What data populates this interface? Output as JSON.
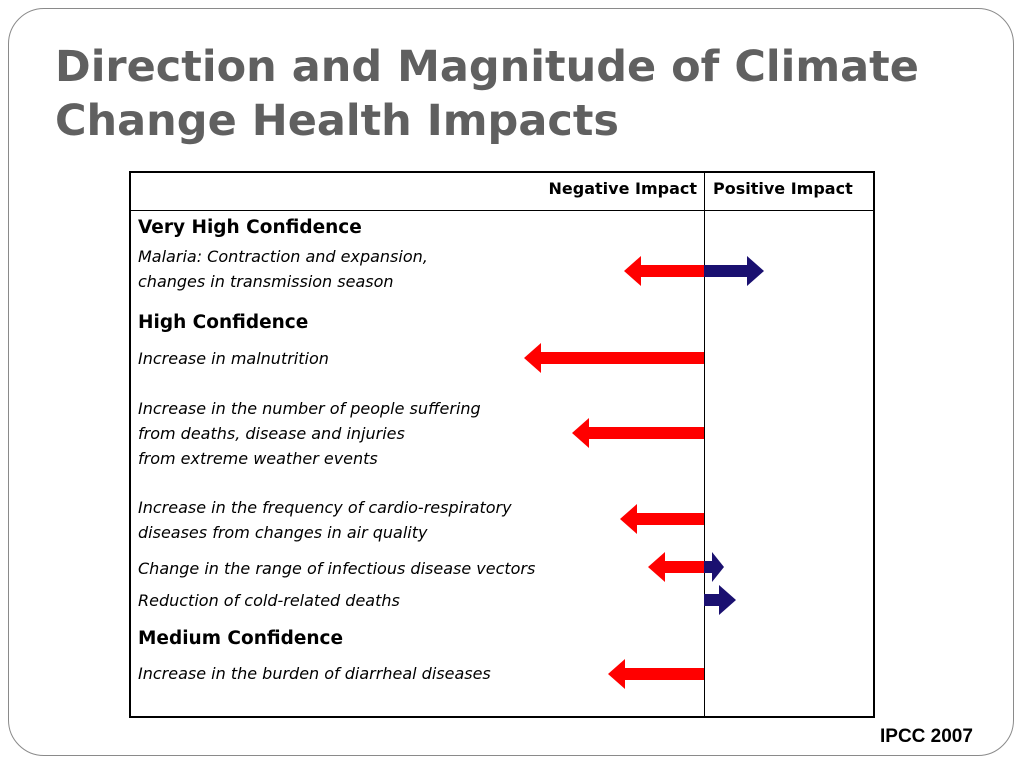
{
  "title": "Direction and Magnitude of Climate Change Health Impacts",
  "source": "IPCC 2007",
  "chart_data": {
    "type": "bar",
    "headers": {
      "negative": "Negative Impact",
      "positive": "Positive Impact"
    },
    "colors": {
      "negative": "#ff0000",
      "positive": "#1a1070"
    },
    "groups": [
      {
        "confidence": "Very High Confidence",
        "items": [
          {
            "label": "Malaria: Contraction and expansion,\nchanges in transmission season",
            "negative": 2,
            "positive": 1.5
          }
        ]
      },
      {
        "confidence": "High Confidence",
        "items": [
          {
            "label": "Increase in malnutrition",
            "negative": 4.5,
            "positive": 0
          },
          {
            "label": "Increase in the number of people suffering\nfrom deaths, disease and injuries\nfrom extreme weather events",
            "negative": 3.3,
            "positive": 0
          },
          {
            "label": "Increase in the frequency of cardio-respiratory\ndiseases from changes in air quality",
            "negative": 2.1,
            "positive": 0
          },
          {
            "label": "Change in the range of infectious disease vectors",
            "negative": 1.4,
            "positive": 0.5
          },
          {
            "label": "Reduction of cold-related deaths",
            "negative": 0,
            "positive": 0.8
          }
        ]
      },
      {
        "confidence": "Medium Confidence",
        "items": [
          {
            "label": "Increase in the burden of diarrheal diseases",
            "negative": 2.4,
            "positive": 0
          }
        ]
      }
    ]
  }
}
